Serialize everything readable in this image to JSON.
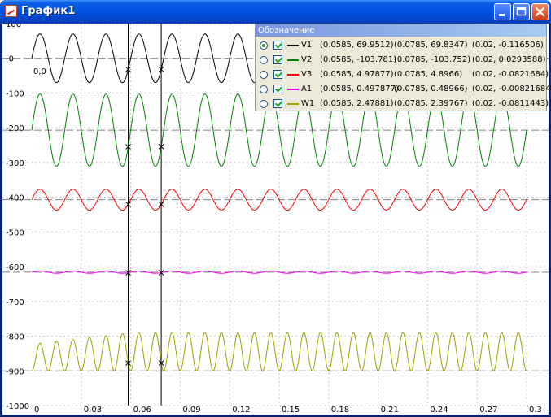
{
  "window": {
    "title": "График1",
    "icons": {
      "app": "chart-app-icon",
      "minimize": "minimize-icon",
      "maximize": "maximize-icon",
      "close": "close-icon"
    }
  },
  "legend": {
    "title": "Обозначение",
    "rows": [
      {
        "name": "V1",
        "color": "#000000",
        "cursor1": "(0.0585, 69.9512)",
        "cursor2": "(0.0785, 69.8347)",
        "delta": "(0.02, -0.116506)",
        "selected": true,
        "visible": true
      },
      {
        "name": "V2",
        "color": "#008000",
        "cursor1": "(0.0585, -103.781)",
        "cursor2": "(0.0785, -103.752)",
        "delta": "(0.02, 0.0293588)",
        "selected": false,
        "visible": true
      },
      {
        "name": "V3",
        "color": "#ff0000",
        "cursor1": "(0.0585, 4.97877)",
        "cursor2": "(0.0785, 4.8966)",
        "delta": "(0.02, -0.0821684)",
        "selected": false,
        "visible": true
      },
      {
        "name": "A1",
        "color": "#ff00ff",
        "cursor1": "(0.0585, 0.497877)",
        "cursor2": "(0.0785, 0.48966)",
        "delta": "(0.02, -0.00821684)",
        "selected": false,
        "visible": true
      },
      {
        "name": "W1",
        "color": "#a0a000",
        "cursor1": "(0.0585, 2.47881)",
        "cursor2": "(0.0785, 2.39767)",
        "delta": "(0.02, -0.0811443)",
        "selected": false,
        "visible": true
      }
    ]
  },
  "chart_data": {
    "type": "line",
    "title": "",
    "xlabel": "",
    "ylabel": "",
    "xlim": [
      0,
      0.3
    ],
    "ylim": [
      -1000,
      100
    ],
    "grid": true,
    "legend_position": "top-right",
    "origin_label": "0,0",
    "x_ticks": [
      "0",
      "0.03",
      "0.06",
      "0.09",
      "0.12",
      "0.15",
      "0.18",
      "0.21",
      "0.24",
      "0.27",
      "0.3"
    ],
    "y_ticks": [
      "100",
      "-0",
      "-100",
      "-200",
      "-300",
      "-400",
      "-500",
      "-600",
      "-700",
      "-800",
      "-900",
      "-1000"
    ],
    "cursors": [
      0.0585,
      0.0785
    ],
    "series": [
      {
        "name": "V1",
        "color": "#000000",
        "offset": 0,
        "amplitude": 70,
        "frequency": 50,
        "shape": "sine",
        "x_start": 0,
        "x_end": 0.3
      },
      {
        "name": "V2",
        "color": "#008000",
        "offset": -207,
        "amplitude": 104,
        "frequency": 50,
        "shape": "sine",
        "x_start": 0,
        "x_end": 0.3
      },
      {
        "name": "V3",
        "color": "#ff0000",
        "offset": -407,
        "amplitude": 30,
        "frequency": 50,
        "shape": "sine",
        "x_start": 0,
        "x_end": 0.3
      },
      {
        "name": "A1",
        "color": "#ff00ff",
        "offset": -616,
        "amplitude": 3,
        "frequency": 50,
        "shape": "sine",
        "x_start": 0,
        "x_end": 0.3
      },
      {
        "name": "W1",
        "color": "#a0a000",
        "offset": -900,
        "amplitude": 110,
        "frequency": 100,
        "shape": "power",
        "x_start": 0,
        "x_end": 0.3
      }
    ]
  }
}
